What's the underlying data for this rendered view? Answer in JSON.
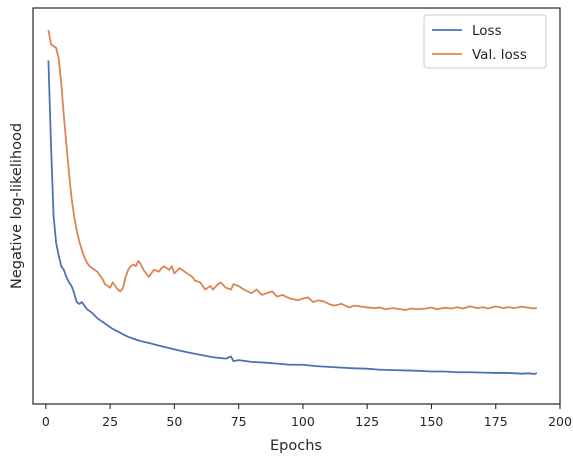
{
  "chart_data": {
    "type": "line",
    "title": "",
    "xlabel": "Epochs",
    "ylabel": "Negative log-likelihood",
    "xlim": [
      -5,
      200
    ],
    "ylim": [
      0,
      100
    ],
    "x_ticks": [
      0,
      25,
      50,
      75,
      100,
      125,
      150,
      175,
      200
    ],
    "y_ticks_visible": false,
    "grid": false,
    "legend_position": "top-right",
    "series": [
      {
        "name": "Loss",
        "color": "#4c72b0",
        "x": [
          1,
          2,
          3,
          4,
          5,
          6,
          7,
          8,
          9,
          10,
          11,
          12,
          13,
          14,
          16,
          18,
          20,
          22,
          24,
          26,
          28,
          30,
          32,
          34,
          36,
          38,
          40,
          43,
          46,
          50,
          55,
          60,
          65,
          70,
          72,
          73,
          75,
          80,
          85,
          90,
          95,
          100,
          105,
          110,
          115,
          120,
          125,
          130,
          135,
          140,
          145,
          150,
          155,
          160,
          165,
          170,
          175,
          180,
          185,
          188,
          190,
          191
        ],
        "y": [
          91.5,
          68,
          48,
          40.5,
          37,
          34,
          33,
          31,
          29.5,
          28.5,
          26.5,
          24,
          23.5,
          24,
          22,
          21,
          19.5,
          18.5,
          17.5,
          16.5,
          15.8,
          15,
          14.3,
          13.8,
          13.3,
          12.9,
          12.6,
          12,
          11.5,
          10.8,
          10,
          9.3,
          8.6,
          8.2,
          8.8,
          7.5,
          7.8,
          7.3,
          7.1,
          6.8,
          6.5,
          6.5,
          6.1,
          5.9,
          5.7,
          5.5,
          5.4,
          5.1,
          5,
          4.9,
          4.8,
          4.6,
          4.6,
          4.4,
          4.4,
          4.3,
          4.2,
          4.2,
          4,
          4.1,
          3.9,
          4.2
        ]
      },
      {
        "name": "Val. loss",
        "color": "#dd8452",
        "x": [
          1,
          2,
          3,
          4,
          5,
          6,
          7,
          8,
          9,
          10,
          11,
          12,
          13,
          14,
          15,
          16,
          17,
          18,
          19,
          20,
          22,
          23,
          25,
          26,
          27,
          28,
          29,
          30,
          31,
          32,
          33,
          34,
          35,
          36,
          37,
          38,
          40,
          41,
          42,
          44,
          45,
          46,
          48,
          49,
          50,
          52,
          53,
          55,
          57,
          58,
          60,
          62,
          64,
          65,
          67,
          68,
          70,
          72,
          73,
          75,
          77,
          80,
          82,
          84,
          86,
          88,
          90,
          92,
          95,
          98,
          100,
          102,
          104,
          106,
          108,
          110,
          112,
          115,
          118,
          120,
          122,
          125,
          128,
          130,
          132,
          135,
          138,
          140,
          142,
          145,
          148,
          150,
          152,
          155,
          158,
          160,
          162,
          165,
          168,
          170,
          172,
          175,
          178,
          180,
          182,
          185,
          188,
          190,
          191
        ],
        "y": [
          100,
          96,
          95.5,
          95,
          92,
          85,
          76,
          68,
          60,
          53,
          48,
          44,
          41,
          38.5,
          36.5,
          35,
          34,
          33.5,
          33,
          32.5,
          30.5,
          29,
          28,
          29.5,
          28.5,
          27.5,
          27,
          28,
          31,
          33,
          34,
          34.5,
          34,
          35.5,
          34.5,
          33,
          31,
          32,
          33,
          32.5,
          33.5,
          34,
          33,
          34,
          32,
          33.5,
          33,
          32,
          31,
          30,
          29.5,
          27.5,
          28.5,
          27.5,
          29,
          29.5,
          28,
          27.5,
          29,
          28.5,
          27.5,
          26.5,
          27.5,
          26,
          26.5,
          27,
          25.5,
          26,
          25,
          24.5,
          25,
          25.3,
          24,
          24.5,
          24.2,
          23.5,
          23,
          23.5,
          22.5,
          23,
          22.8,
          22.5,
          22.3,
          22.5,
          22,
          22.3,
          22,
          21.8,
          22.2,
          22,
          22.2,
          22.5,
          22,
          22.4,
          22.2,
          22.6,
          22.2,
          22.8,
          22.3,
          22.6,
          22.2,
          22.8,
          22.3,
          22.6,
          22.3,
          22.7,
          22.4,
          22.2,
          22.5
        ]
      }
    ]
  }
}
